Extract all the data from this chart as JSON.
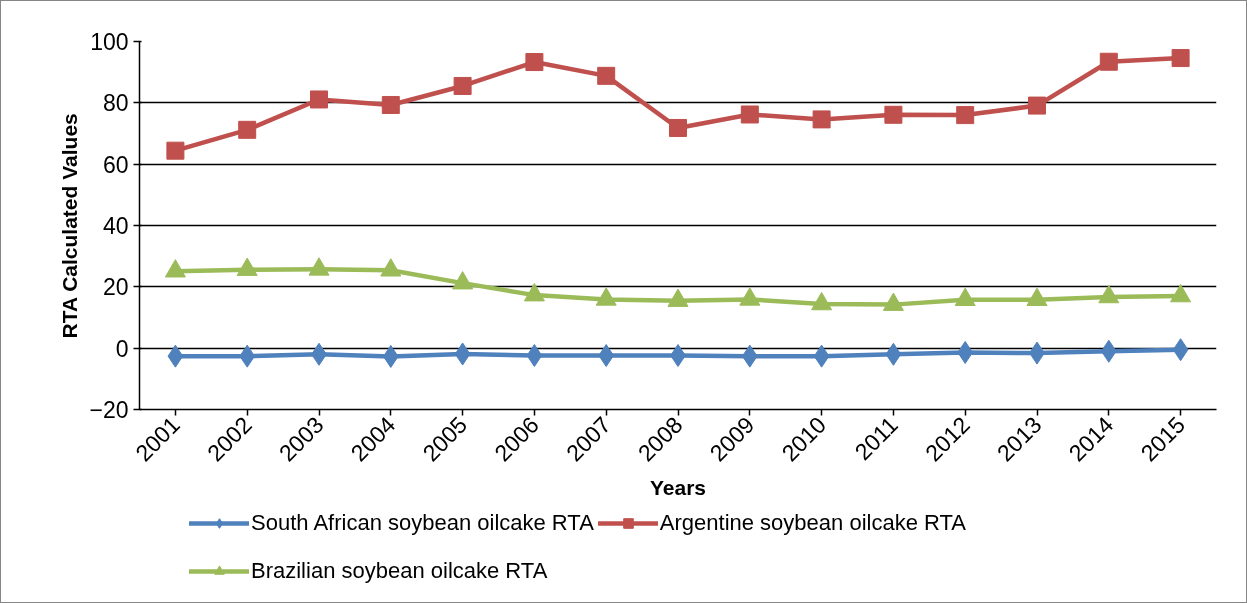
{
  "chart_data": {
    "type": "line",
    "xlabel": "Years",
    "ylabel": "RTA Calculated Values",
    "categories": [
      "2001",
      "2002",
      "2003",
      "2004",
      "2005",
      "2006",
      "2007",
      "2008",
      "2009",
      "2010",
      "2011",
      "2012",
      "2013",
      "2014",
      "2015"
    ],
    "ylim": [
      -20,
      100
    ],
    "yticks": [
      -20,
      0,
      20,
      40,
      60,
      80,
      100
    ],
    "grid": "y",
    "legend": "bottom",
    "line_style": "solid",
    "series": [
      {
        "name": "South African soybean oilcake RTA",
        "color": "#4f81bd",
        "marker": "diamond",
        "values": [
          -2.6,
          -2.6,
          -2.0,
          -2.7,
          -1.9,
          -2.4,
          -2.4,
          -2.4,
          -2.6,
          -2.6,
          -2.0,
          -1.4,
          -1.6,
          -1.0,
          -0.5
        ]
      },
      {
        "name": "Argentine soybean oilcake RTA",
        "color": "#c0504d",
        "marker": "square",
        "values": [
          64.4,
          71.2,
          81.1,
          79.3,
          85.5,
          93.3,
          88.8,
          71.8,
          76.2,
          74.6,
          76.1,
          76.0,
          79.1,
          93.4,
          94.6
        ]
      },
      {
        "name": "Brazilian soybean oilcake RTA",
        "color": "#9bbb59",
        "marker": "triangle",
        "values": [
          25.1,
          25.6,
          25.7,
          25.4,
          21.2,
          17.3,
          15.9,
          15.5,
          15.9,
          14.4,
          14.2,
          15.8,
          15.8,
          16.7,
          17.0
        ]
      }
    ]
  }
}
